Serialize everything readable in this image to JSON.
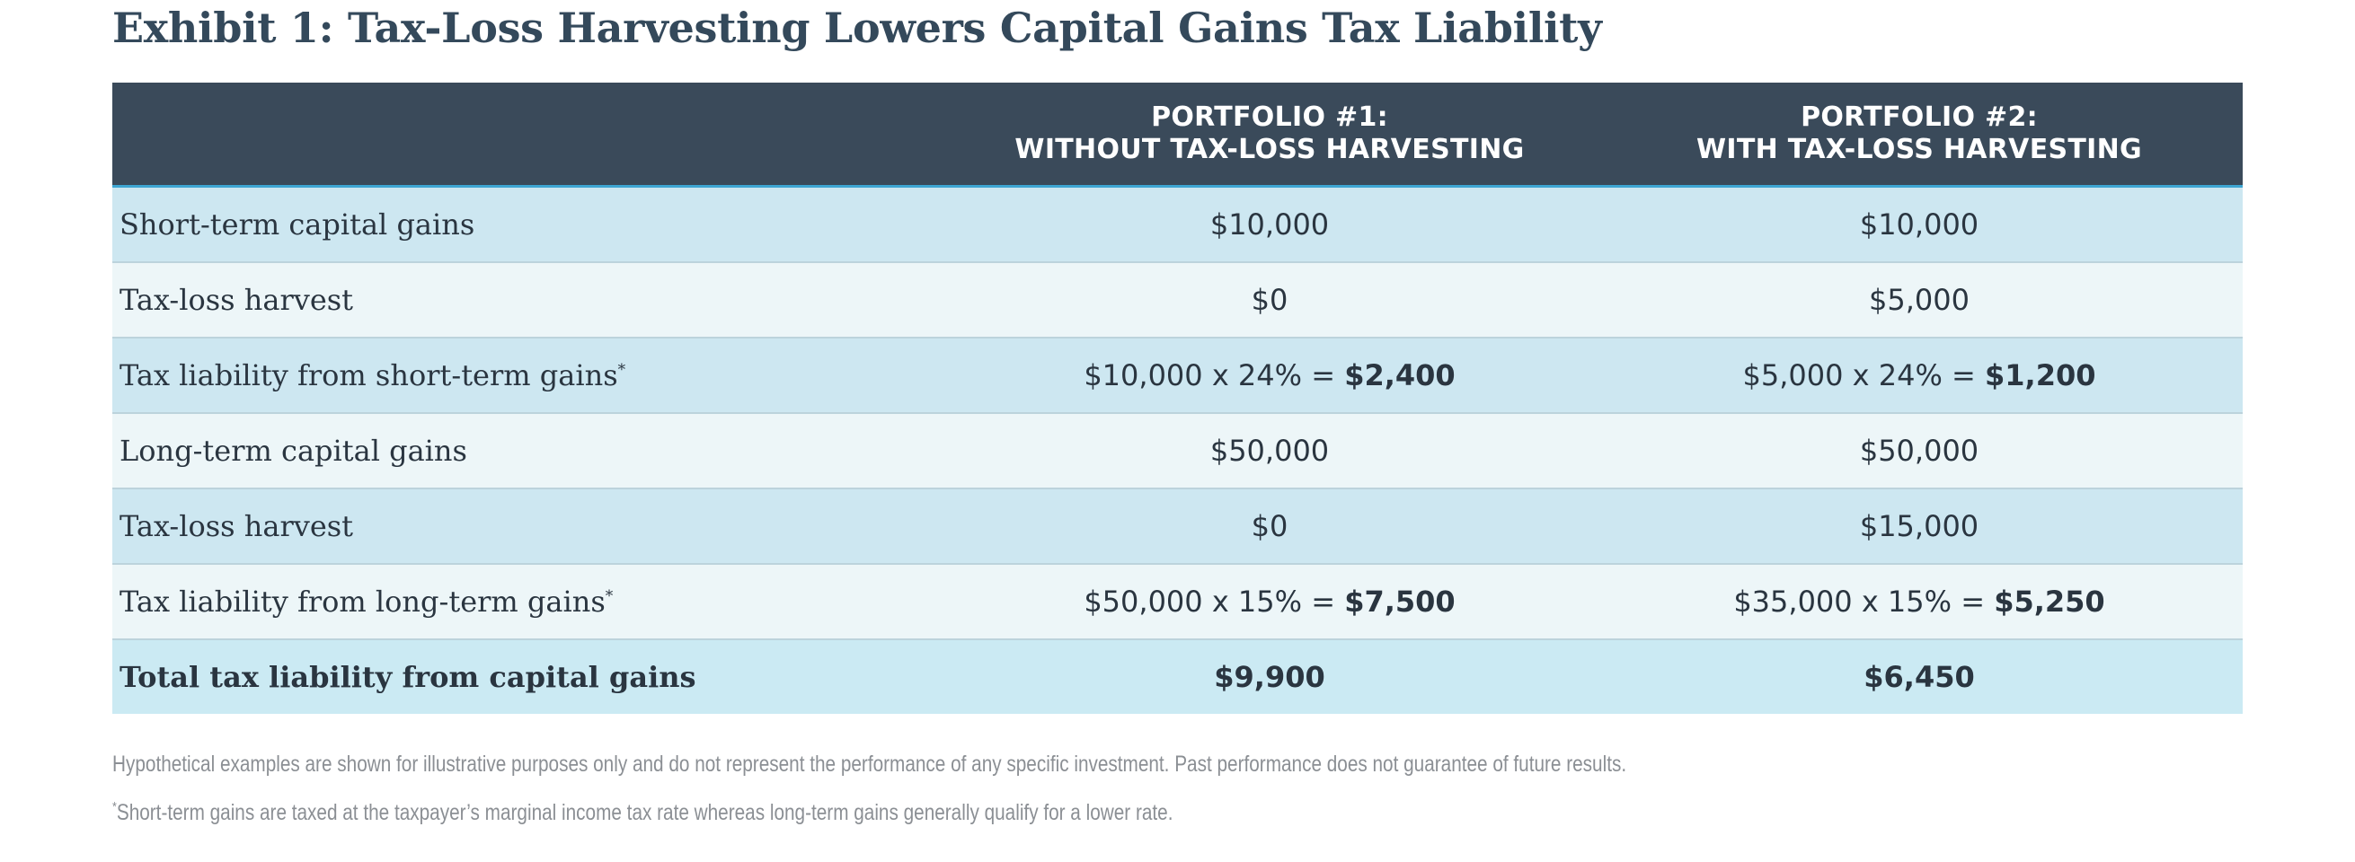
{
  "title": "Exhibit 1: Tax-Loss Harvesting Lowers Capital Gains Tax Liability",
  "table": {
    "headers": {
      "label": "",
      "portfolio1": [
        "PORTFOLIO #1:",
        "WITHOUT TAX-LOSS HARVESTING"
      ],
      "portfolio2": [
        "PORTFOLIO #2:",
        "WITH TAX-LOSS HARVESTING"
      ]
    },
    "rows": [
      {
        "label": "Short-term capital gains",
        "p1": "$10,000",
        "p2": "$10,000"
      },
      {
        "label": "Tax-loss harvest",
        "p1": "$0",
        "p2": "$5,000"
      },
      {
        "label": "Tax liability from short-term gains",
        "label_mark": "*",
        "p1_expr": "$10,000 x 24% =",
        "p1_result": "$2,400",
        "p2_expr": "$5,000 x 24% =",
        "p2_result": "$1,200"
      },
      {
        "label": "Long-term capital gains",
        "p1": "$50,000",
        "p2": "$50,000"
      },
      {
        "label": "Tax-loss harvest",
        "p1": "$0",
        "p2": "$15,000"
      },
      {
        "label": "Tax liability from long-term gains",
        "label_mark": "*",
        "p1_expr": "$50,000 x 15% =",
        "p1_result": "$7,500",
        "p2_expr": "$35,000 x 15% =",
        "p2_result": "$5,250"
      },
      {
        "label": "Total tax liability from capital gains",
        "p1": "$9,900",
        "p2": "$6,450"
      }
    ]
  },
  "notes": {
    "disclaimer": "Hypothetical examples are shown for illustrative purposes only and do not represent the performance of any specific investment. Past performance does not guarantee of future results.",
    "footnote_mark": "*",
    "footnote": "Short-term gains are taxed at the taxpayer’s marginal income tax rate whereas long-term gains generally qualify for a lower rate."
  },
  "colors": {
    "header_bg": "#3a4a5a",
    "header_rule": "#3ea6d3",
    "row_dark": "#cde7f1",
    "row_light": "#edf6f8",
    "title": "#34495b"
  }
}
